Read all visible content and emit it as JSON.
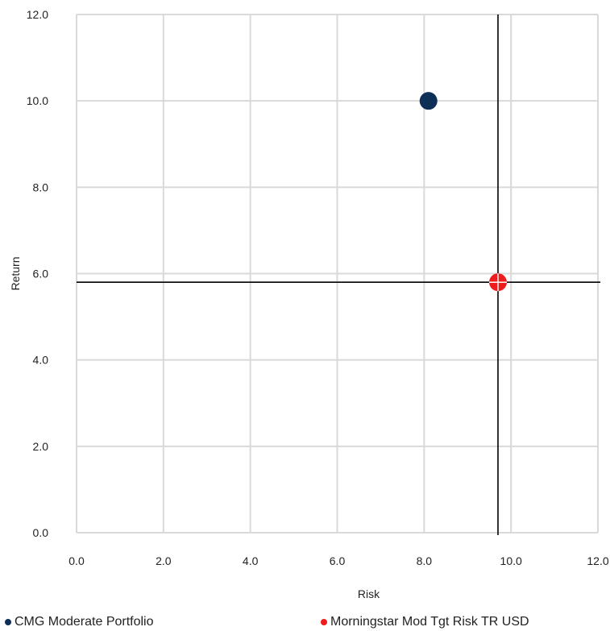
{
  "chart_data": {
    "type": "scatter",
    "xlabel": "Risk",
    "ylabel": "Return",
    "xlim": [
      0,
      12
    ],
    "ylim": [
      0,
      12
    ],
    "xticks": [
      "0.0",
      "2.0",
      "4.0",
      "6.0",
      "8.0",
      "10.0",
      "12.0"
    ],
    "yticks": [
      "0.0",
      "2.0",
      "4.0",
      "6.0",
      "8.0",
      "10.0",
      "12.0"
    ],
    "grid": true,
    "legend_position": "bottom",
    "series": [
      {
        "name": "CMG Moderate Portfolio",
        "color": "#0d2f57",
        "x": 8.1,
        "y": 10.0
      },
      {
        "name": "Morningstar Mod Tgt Risk TR USD",
        "color": "#ee1c1c",
        "x": 9.7,
        "y": 5.8
      }
    ],
    "reference_lines": {
      "x": 9.7,
      "y": 5.8,
      "color": "#000000"
    }
  }
}
